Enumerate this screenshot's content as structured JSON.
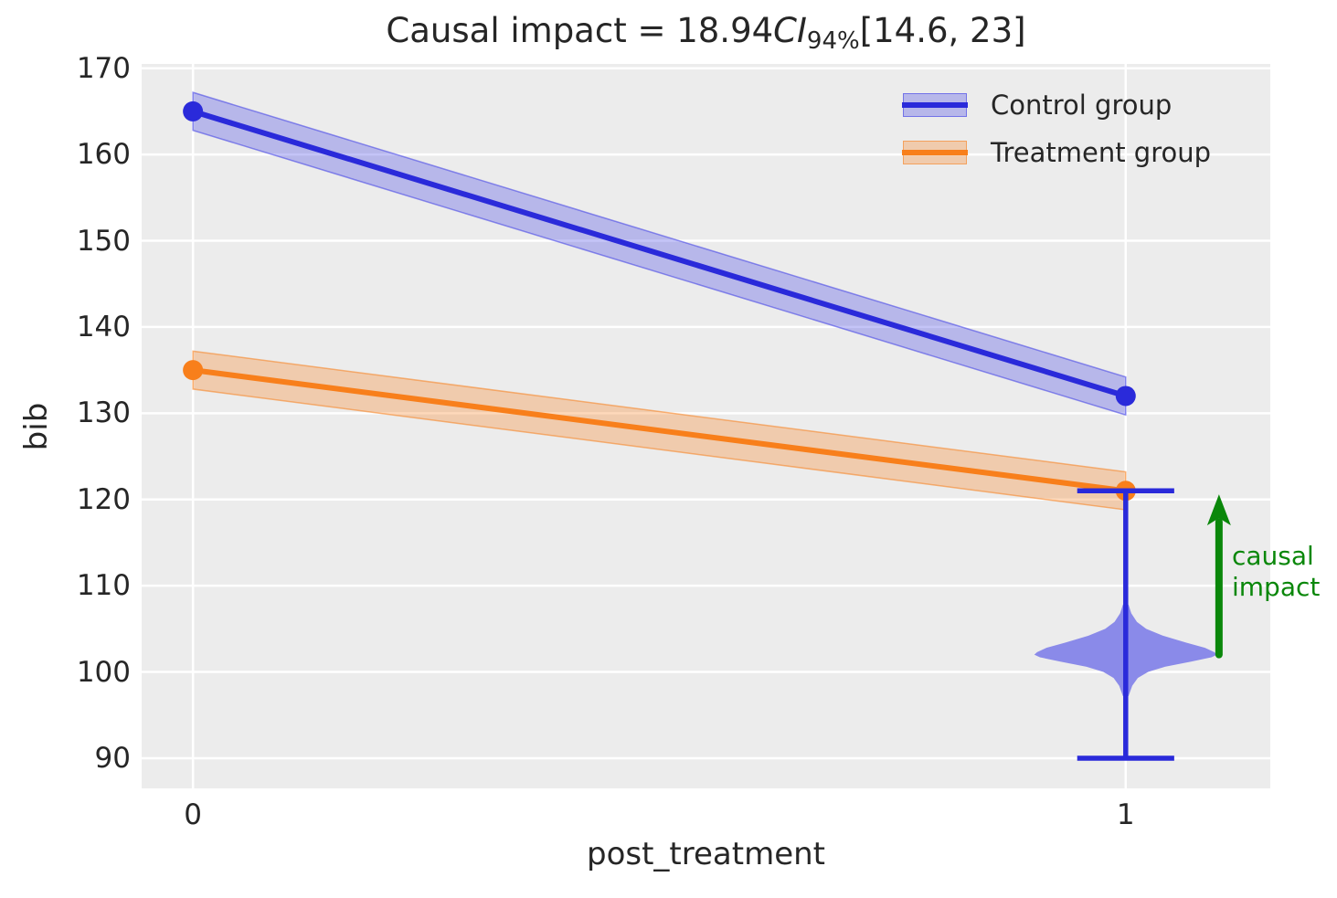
{
  "title": {
    "prefix": "Causal impact = 18.94",
    "ci": "CI",
    "ci_subscript": "94%",
    "interval": "[14.6, 23]"
  },
  "legend": {
    "items": [
      {
        "label": "Control group",
        "line_color": "#2a2ada",
        "band_color": "rgba(60,60,230,0.30)",
        "band_edge": "rgba(60,60,230,0.55)"
      },
      {
        "label": "Treatment group",
        "line_color": "#f87f1b",
        "band_color": "rgba(248,127,27,0.30)",
        "band_edge": "rgba(248,127,27,0.55)"
      }
    ]
  },
  "chart_data": {
    "type": "line",
    "title": "Causal impact = 18.94 CI_94% [14.6, 23]",
    "xlabel": "post_treatment",
    "ylabel": "bib",
    "xlim": [
      -0.055,
      1.155
    ],
    "ylim": [
      86.5,
      170.5
    ],
    "xticks": [
      0,
      1
    ],
    "yticks": [
      90,
      100,
      110,
      120,
      130,
      140,
      150,
      160,
      170
    ],
    "grid": true,
    "grid_color": "#ffffff",
    "plot_bg": "#ececec",
    "legend_position": "upper right",
    "series": [
      {
        "name": "Control group",
        "x": [
          0,
          1
        ],
        "y": [
          165,
          132
        ],
        "color": "#2a2ada",
        "band_halfwidth": 2.2,
        "band_fill": "rgba(60,60,230,0.30)",
        "band_edge": "rgba(60,60,230,0.55)"
      },
      {
        "name": "Treatment group",
        "x": [
          0,
          1
        ],
        "y": [
          135,
          121
        ],
        "color": "#f87f1b",
        "band_halfwidth": 2.2,
        "band_fill": "rgba(248,127,27,0.30)",
        "band_edge": "rgba(248,127,27,0.55)"
      }
    ],
    "violin": {
      "x": 1,
      "whisker_low": 90,
      "whisker_high": 121,
      "cap_halfwidth": 0.052,
      "mode": 102,
      "fill": "#8a8ae9",
      "line_color": "#2a2ada",
      "profile": [
        [
          107.8,
          0.003
        ],
        [
          106.8,
          0.006
        ],
        [
          105.8,
          0.012
        ],
        [
          105.0,
          0.022
        ],
        [
          104.2,
          0.04
        ],
        [
          103.4,
          0.065
        ],
        [
          102.8,
          0.085
        ],
        [
          102.3,
          0.095
        ],
        [
          102.0,
          0.098
        ],
        [
          101.7,
          0.092
        ],
        [
          101.2,
          0.07
        ],
        [
          100.6,
          0.042
        ],
        [
          100.0,
          0.024
        ],
        [
          99.3,
          0.013
        ],
        [
          98.4,
          0.007
        ],
        [
          97.2,
          0.003
        ]
      ]
    },
    "annotation": {
      "lines": [
        "causal",
        "impact"
      ],
      "color": "#0a870a",
      "arrow_x": 1.1,
      "arrow_y_from": 102,
      "arrow_y_to": 120.6
    }
  }
}
